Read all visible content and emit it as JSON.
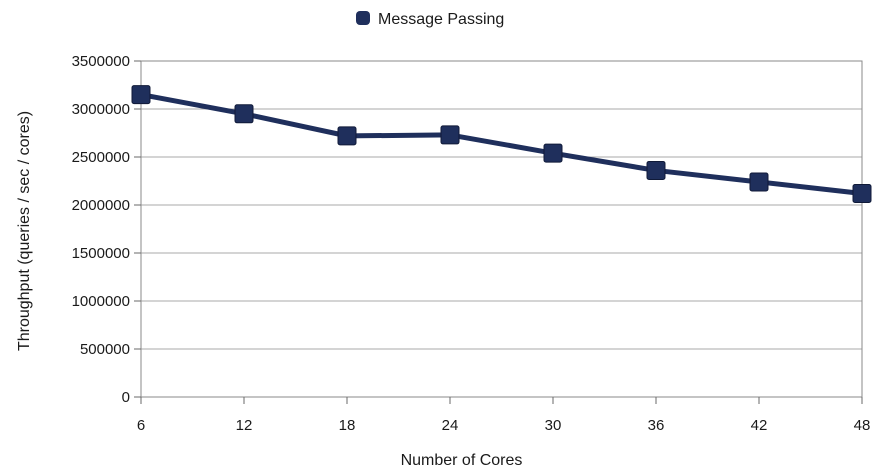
{
  "chart_data": {
    "type": "line",
    "title": "",
    "xlabel": "Number of Cores",
    "ylabel": "Throughput (queries / sec / cores)",
    "x": [
      6,
      12,
      18,
      24,
      30,
      36,
      42,
      48
    ],
    "ylim": [
      0,
      3500000
    ],
    "yticks": [
      0,
      500000,
      1000000,
      1500000,
      2000000,
      2500000,
      3000000,
      3500000
    ],
    "xticks": [
      6,
      12,
      18,
      24,
      30,
      36,
      42,
      48
    ],
    "grid": true,
    "legend_position": "top-center",
    "series": [
      {
        "name": "Message Passing",
        "color": "#1f2f5c",
        "marker": "square",
        "values": [
          3150000,
          2950000,
          2720000,
          2730000,
          2540000,
          2360000,
          2240000,
          2120000
        ]
      }
    ]
  }
}
